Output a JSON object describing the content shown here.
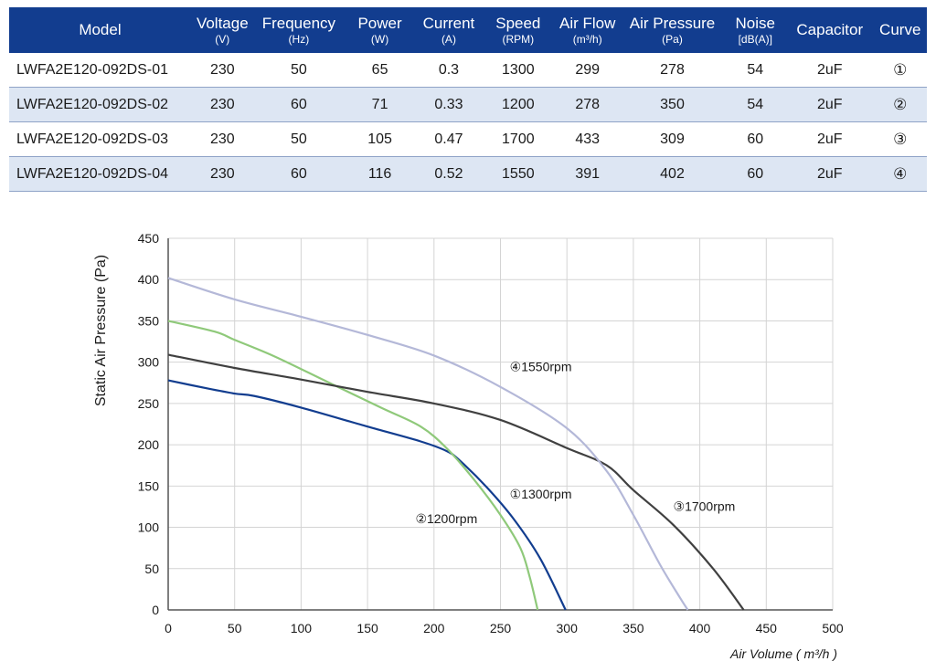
{
  "table": {
    "headers": [
      {
        "label": "Model",
        "unit": ""
      },
      {
        "label": "Voltage",
        "unit": "(V)"
      },
      {
        "label": "Frequency",
        "unit": "(Hz)"
      },
      {
        "label": "Power",
        "unit": "(W)"
      },
      {
        "label": "Current",
        "unit": "(A)"
      },
      {
        "label": "Speed",
        "unit": "(RPM)"
      },
      {
        "label": "Air Flow",
        "unit": "(m³/h)"
      },
      {
        "label": "Air Pressure",
        "unit": "(Pa)"
      },
      {
        "label": "Noise",
        "unit": "[dB(A)]"
      },
      {
        "label": "Capacitor",
        "unit": ""
      },
      {
        "label": "Curve",
        "unit": ""
      }
    ],
    "rows": [
      [
        "LWFA2E120-092DS-01",
        "230",
        "50",
        "65",
        "0.3",
        "1300",
        "299",
        "278",
        "54",
        "2uF",
        "①"
      ],
      [
        "LWFA2E120-092DS-02",
        "230",
        "60",
        "71",
        "0.33",
        "1200",
        "278",
        "350",
        "54",
        "2uF",
        "②"
      ],
      [
        "LWFA2E120-092DS-03",
        "230",
        "50",
        "105",
        "0.47",
        "1700",
        "433",
        "309",
        "60",
        "2uF",
        "③"
      ],
      [
        "LWFA2E120-092DS-04",
        "230",
        "60",
        "116",
        "0.52",
        "1550",
        "391",
        "402",
        "60",
        "2uF",
        "④"
      ]
    ]
  },
  "chart_data": {
    "type": "line",
    "xlabel": "Air Volume ( m³/h )",
    "ylabel": "Static Air Pressure  (Pa)",
    "xlim": [
      0,
      500
    ],
    "ylim": [
      0,
      450
    ],
    "xticks": [
      0,
      50,
      100,
      150,
      200,
      250,
      300,
      350,
      400,
      450,
      500
    ],
    "yticks": [
      0,
      50,
      100,
      150,
      200,
      250,
      300,
      350,
      400,
      450
    ],
    "grid": true,
    "series": [
      {
        "name": "①1300rpm",
        "color": "#123d8f",
        "points": [
          [
            0,
            278
          ],
          [
            30,
            268
          ],
          [
            50,
            262
          ],
          [
            65,
            259
          ],
          [
            100,
            245
          ],
          [
            150,
            222
          ],
          [
            190,
            204
          ],
          [
            210,
            192
          ],
          [
            220,
            180
          ],
          [
            240,
            148
          ],
          [
            260,
            110
          ],
          [
            280,
            62
          ],
          [
            299,
            0
          ]
        ]
      },
      {
        "name": "②1200rpm",
        "color": "#8fc97a",
        "points": [
          [
            0,
            350
          ],
          [
            35,
            337
          ],
          [
            50,
            327
          ],
          [
            80,
            307
          ],
          [
            120,
            276
          ],
          [
            160,
            245
          ],
          [
            190,
            222
          ],
          [
            210,
            195
          ],
          [
            230,
            158
          ],
          [
            250,
            115
          ],
          [
            265,
            75
          ],
          [
            272,
            40
          ],
          [
            278,
            0
          ]
        ]
      },
      {
        "name": "③1700rpm",
        "color": "#404040",
        "points": [
          [
            0,
            309
          ],
          [
            50,
            293
          ],
          [
            100,
            279
          ],
          [
            150,
            264
          ],
          [
            200,
            250
          ],
          [
            250,
            230
          ],
          [
            300,
            196
          ],
          [
            330,
            175
          ],
          [
            350,
            145
          ],
          [
            380,
            103
          ],
          [
            410,
            50
          ],
          [
            433,
            0
          ]
        ]
      },
      {
        "name": "④1550rpm",
        "color": "#b4b8d8",
        "points": [
          [
            0,
            402
          ],
          [
            50,
            376
          ],
          [
            100,
            355
          ],
          [
            150,
            333
          ],
          [
            200,
            308
          ],
          [
            250,
            270
          ],
          [
            300,
            220
          ],
          [
            330,
            168
          ],
          [
            350,
            115
          ],
          [
            370,
            55
          ],
          [
            385,
            15
          ],
          [
            391,
            0
          ]
        ]
      }
    ],
    "annotations": [
      {
        "text": "④1550rpm",
        "x": 257,
        "y": 289
      },
      {
        "text": "①1300rpm",
        "x": 257,
        "y": 135
      },
      {
        "text": "②1200rpm",
        "x": 186,
        "y": 105
      },
      {
        "text": "③1700rpm",
        "x": 380,
        "y": 120
      }
    ]
  }
}
